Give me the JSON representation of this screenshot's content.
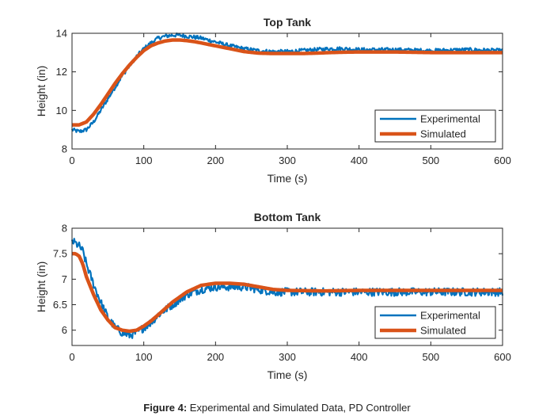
{
  "caption": {
    "label": "Figure 4:",
    "text": "Experimental and Simulated Data, PD Controller"
  },
  "colors": {
    "experimental": "#0072BD",
    "simulated": "#D95319",
    "axis": "#262626",
    "text": "#262626"
  },
  "chart_data": [
    {
      "type": "line",
      "title": "Top Tank",
      "xlabel": "Time (s)",
      "ylabel": "Height (in)",
      "xlim": [
        0,
        600
      ],
      "ylim": [
        8,
        14
      ],
      "xticks": [
        0,
        100,
        200,
        300,
        400,
        500,
        600
      ],
      "yticks": [
        8,
        10,
        12,
        14
      ],
      "legend": {
        "location": "bottom-right",
        "entries": [
          "Experimental",
          "Simulated"
        ]
      },
      "series": [
        {
          "name": "Experimental",
          "noise": 0.1,
          "x": [
            0,
            10,
            20,
            30,
            40,
            50,
            60,
            70,
            80,
            90,
            100,
            110,
            120,
            130,
            140,
            150,
            160,
            170,
            180,
            190,
            200,
            220,
            240,
            260,
            280,
            300,
            320,
            340,
            360,
            380,
            400,
            450,
            500,
            550,
            600
          ],
          "y": [
            9.0,
            8.9,
            9.0,
            9.4,
            10.0,
            10.6,
            11.2,
            11.8,
            12.3,
            12.8,
            13.2,
            13.5,
            13.75,
            13.85,
            13.9,
            13.9,
            13.85,
            13.8,
            13.75,
            13.65,
            13.55,
            13.35,
            13.2,
            13.1,
            13.05,
            13.05,
            13.1,
            13.15,
            13.2,
            13.2,
            13.15,
            13.15,
            13.1,
            13.15,
            13.1
          ]
        },
        {
          "name": "Simulated",
          "x": [
            0,
            10,
            20,
            30,
            40,
            50,
            60,
            70,
            80,
            90,
            100,
            110,
            120,
            130,
            140,
            150,
            160,
            170,
            180,
            190,
            200,
            220,
            240,
            260,
            280,
            300,
            320,
            340,
            360,
            380,
            400,
            450,
            500,
            550,
            600
          ],
          "y": [
            9.25,
            9.25,
            9.4,
            9.8,
            10.3,
            10.85,
            11.4,
            11.9,
            12.35,
            12.75,
            13.1,
            13.35,
            13.5,
            13.6,
            13.65,
            13.65,
            13.62,
            13.57,
            13.5,
            13.42,
            13.35,
            13.2,
            13.05,
            12.97,
            12.95,
            12.95,
            12.95,
            12.97,
            13.0,
            13.02,
            13.03,
            13.03,
            13.0,
            13.0,
            13.0
          ]
        }
      ]
    },
    {
      "type": "line",
      "title": "Bottom Tank",
      "xlabel": "Time (s)",
      "ylabel": "Height (in)",
      "xlim": [
        0,
        600
      ],
      "ylim": [
        5.7,
        8
      ],
      "xticks": [
        0,
        100,
        200,
        300,
        400,
        500,
        600
      ],
      "yticks": [
        6,
        6.5,
        7,
        7.5,
        8
      ],
      "legend": {
        "location": "bottom-right",
        "entries": [
          "Experimental",
          "Simulated"
        ]
      },
      "series": [
        {
          "name": "Experimental",
          "noise": 0.08,
          "x": [
            0,
            5,
            10,
            15,
            20,
            30,
            40,
            50,
            60,
            70,
            80,
            90,
            100,
            110,
            120,
            140,
            160,
            180,
            200,
            220,
            240,
            260,
            280,
            300,
            350,
            400,
            450,
            500,
            550,
            600
          ],
          "y": [
            7.75,
            7.7,
            7.65,
            7.55,
            7.3,
            6.9,
            6.55,
            6.25,
            6.05,
            5.95,
            5.9,
            5.95,
            6.05,
            6.15,
            6.3,
            6.5,
            6.7,
            6.8,
            6.85,
            6.85,
            6.85,
            6.8,
            6.75,
            6.75,
            6.75,
            6.75,
            6.75,
            6.75,
            6.75,
            6.75
          ]
        },
        {
          "name": "Simulated",
          "x": [
            0,
            5,
            10,
            15,
            20,
            30,
            40,
            50,
            60,
            70,
            80,
            90,
            100,
            110,
            120,
            140,
            160,
            180,
            200,
            220,
            240,
            260,
            280,
            300,
            350,
            400,
            450,
            500,
            550,
            600
          ],
          "y": [
            7.5,
            7.5,
            7.45,
            7.3,
            7.05,
            6.7,
            6.4,
            6.2,
            6.05,
            6.0,
            5.98,
            6.0,
            6.08,
            6.18,
            6.3,
            6.55,
            6.75,
            6.88,
            6.92,
            6.92,
            6.9,
            6.85,
            6.8,
            6.78,
            6.77,
            6.78,
            6.78,
            6.78,
            6.78,
            6.78
          ]
        }
      ]
    }
  ]
}
